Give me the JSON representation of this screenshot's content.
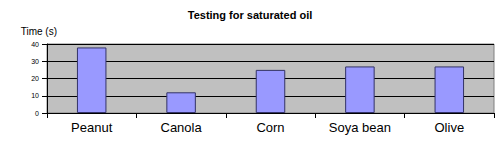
{
  "chart_data": {
    "type": "bar",
    "title": "Testing for saturated oil",
    "y_label": "Time (s)",
    "categories": [
      "Peanut",
      "Canola",
      "Corn",
      "Soya bean",
      "Olive"
    ],
    "values": [
      38,
      12,
      25,
      27,
      27
    ],
    "color": "#9999ff",
    "ylim": [
      0,
      40
    ],
    "yticks": [
      0,
      10,
      20,
      30,
      40
    ],
    "grid": true
  }
}
